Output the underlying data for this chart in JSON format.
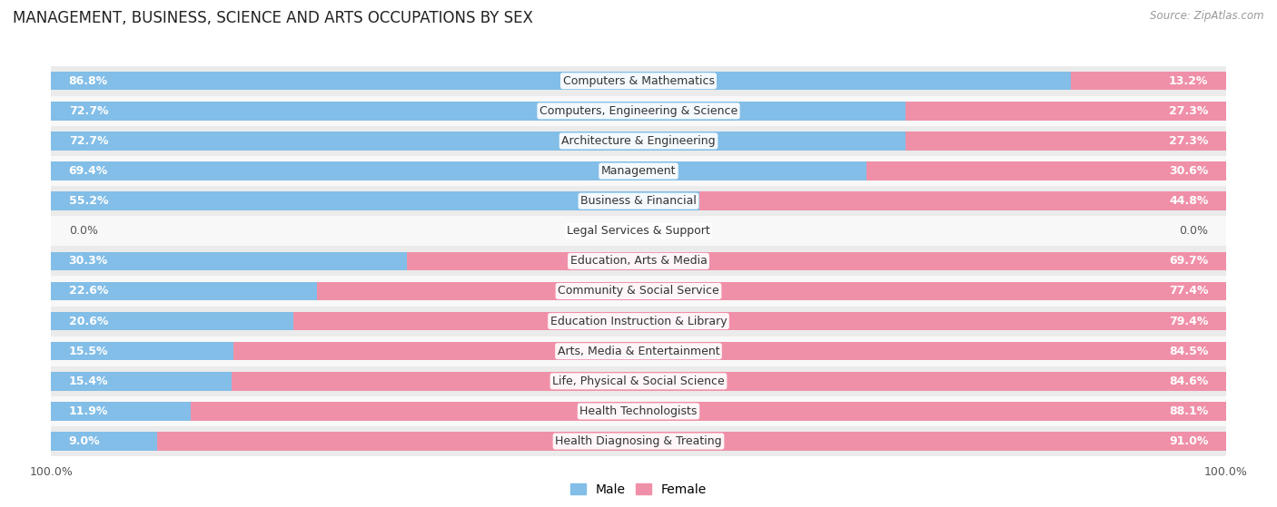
{
  "title": "MANAGEMENT, BUSINESS, SCIENCE AND ARTS OCCUPATIONS BY SEX",
  "source": "Source: ZipAtlas.com",
  "categories": [
    "Computers & Mathematics",
    "Computers, Engineering & Science",
    "Architecture & Engineering",
    "Management",
    "Business & Financial",
    "Legal Services & Support",
    "Education, Arts & Media",
    "Community & Social Service",
    "Education Instruction & Library",
    "Arts, Media & Entertainment",
    "Life, Physical & Social Science",
    "Health Technologists",
    "Health Diagnosing & Treating"
  ],
  "male": [
    86.8,
    72.7,
    72.7,
    69.4,
    55.2,
    0.0,
    30.3,
    22.6,
    20.6,
    15.5,
    15.4,
    11.9,
    9.0
  ],
  "female": [
    13.2,
    27.3,
    27.3,
    30.6,
    44.8,
    0.0,
    69.7,
    77.4,
    79.4,
    84.5,
    84.6,
    88.1,
    91.0
  ],
  "male_color": "#82BEE8",
  "female_color": "#F090A8",
  "bg_color": "#FFFFFF",
  "row_bg_even": "#EBEBEB",
  "row_bg_odd": "#F8F8F8",
  "bar_height": 0.62,
  "title_fontsize": 12,
  "label_fontsize": 9,
  "pct_fontsize": 9,
  "tick_fontsize": 9,
  "legend_fontsize": 10,
  "inside_threshold": 8.0
}
